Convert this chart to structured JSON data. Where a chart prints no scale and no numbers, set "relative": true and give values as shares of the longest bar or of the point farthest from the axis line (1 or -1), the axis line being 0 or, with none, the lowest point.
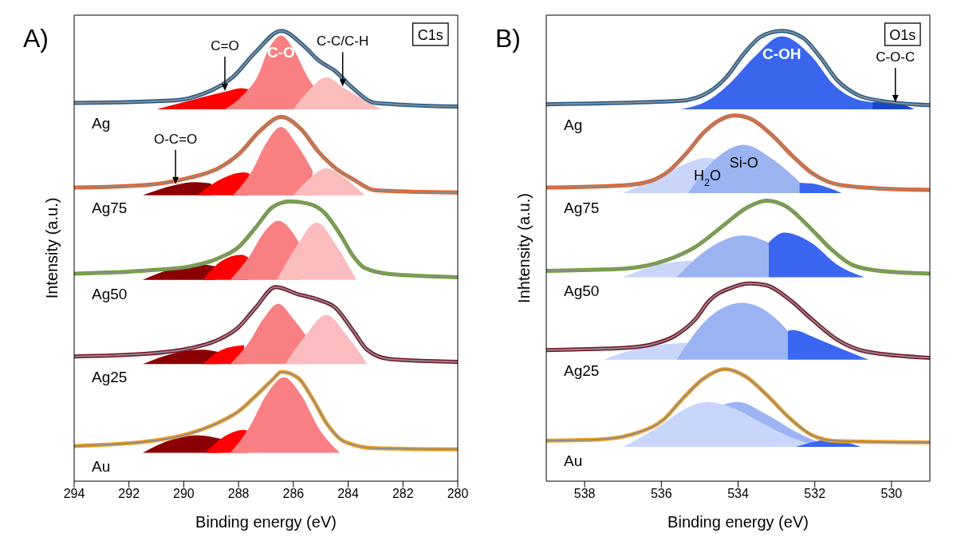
{
  "chart_data": [
    {
      "type": "line",
      "title": "A)",
      "xlabel": "Binding energy (eV)",
      "ylabel": "Intensity (a.u.)",
      "relative": true,
      "xlim": [
        294,
        280
      ],
      "xticks": [
        294,
        292,
        290,
        288,
        286,
        284,
        282,
        280
      ],
      "annotations": [
        "C1s",
        {
          "text": "C=O",
          "x": 288.5,
          "y": 0.865
        },
        {
          "text": "C-O",
          "x": 286.45,
          "y": 0.99
        },
        {
          "text": "C-C/C-H",
          "x": 284.2,
          "y": 0.875
        },
        {
          "text": "O-C=O",
          "x": 290.3,
          "y": 0.658
        }
      ],
      "series": [
        {
          "type": "area",
          "color": "#ff0000",
          "x": [
            291.0,
            289.5,
            288.5,
            287.9,
            287.65
          ],
          "values": [
            0.826,
            0.85,
            0.865,
            0.873,
            0.87
          ]
        },
        {
          "type": "area",
          "color": "#f88080",
          "x": [
            288.5,
            287.8,
            287.3,
            286.9,
            286.45,
            286.0,
            285.5,
            285.25
          ],
          "values": [
            0.826,
            0.86,
            0.9,
            0.96,
            0.99,
            0.96,
            0.9,
            0.876
          ]
        },
        {
          "type": "area",
          "color": "#fbbcbc",
          "x": [
            286.0,
            285.4,
            284.8,
            284.2,
            283.5,
            282.8
          ],
          "values": [
            0.826,
            0.87,
            0.897,
            0.875,
            0.85,
            0.826
          ]
        },
        {
          "name": "Ag",
          "color": "#1f5a8f",
          "x": [
            294.0,
            290.3,
            289.26,
            288.2,
            287.38,
            286.44,
            285.61,
            285.09,
            284.46,
            283.83,
            283.0,
            280.0
          ],
          "values": [
            0.84,
            0.846,
            0.861,
            0.898,
            0.953,
            1.0,
            0.966,
            0.935,
            0.91,
            0.873,
            0.84,
            0.832
          ]
        },
        {
          "color": "#8c8c8c",
          "x": [
            294.0,
            290.3,
            289.26,
            288.2,
            287.38,
            286.44,
            285.61,
            285.09,
            284.46,
            283.83,
            283.0,
            280.0
          ],
          "values": [
            0.84,
            0.846,
            0.861,
            0.898,
            0.953,
            1.0,
            0.966,
            0.935,
            0.91,
            0.873,
            0.84,
            0.832
          ]
        },
        {
          "type": "area",
          "color": "#8b0001",
          "x": [
            291.5,
            290.3,
            289.6,
            289.0
          ],
          "values": [
            0.635,
            0.658,
            0.664,
            0.661
          ]
        },
        {
          "type": "area",
          "color": "#ff0001",
          "x": [
            289.5,
            288.6,
            287.8,
            287.6
          ],
          "values": [
            0.635,
            0.672,
            0.686,
            0.683
          ]
        },
        {
          "type": "area",
          "color": "#f88081",
          "x": [
            288.2,
            287.5,
            287.0,
            286.45,
            285.9,
            285.3
          ],
          "values": [
            0.635,
            0.69,
            0.75,
            0.787,
            0.75,
            0.69
          ]
        },
        {
          "type": "area",
          "color": "#fbbcbd",
          "x": [
            286.0,
            285.4,
            284.8,
            284.1,
            283.4
          ],
          "values": [
            0.635,
            0.672,
            0.695,
            0.672,
            0.635
          ]
        },
        {
          "name": "Ag75",
          "color": "#f05a1e",
          "x": [
            294.0,
            291.34,
            289.78,
            288.74,
            288.0,
            287.17,
            286.44,
            285.71,
            285.09,
            284.46,
            283.83,
            283.0,
            280.0
          ],
          "values": [
            0.652,
            0.658,
            0.674,
            0.695,
            0.726,
            0.781,
            0.809,
            0.781,
            0.732,
            0.695,
            0.671,
            0.646,
            0.641
          ]
        },
        {
          "color": "#8c8c8c",
          "x": [
            294.0,
            291.34,
            289.78,
            288.74,
            288.0,
            287.17,
            286.44,
            285.71,
            285.09,
            284.46,
            283.83,
            283.0,
            280.0
          ],
          "values": [
            0.652,
            0.658,
            0.674,
            0.695,
            0.726,
            0.781,
            0.809,
            0.781,
            0.732,
            0.695,
            0.671,
            0.646,
            0.641
          ]
        },
        {
          "type": "area",
          "color": "#8b0002",
          "x": [
            291.5,
            290.3,
            289.4,
            288.85
          ],
          "values": [
            0.447,
            0.474,
            0.482,
            0.477
          ]
        },
        {
          "type": "area",
          "color": "#ff0002",
          "x": [
            289.3,
            288.6,
            287.9,
            287.65
          ],
          "values": [
            0.447,
            0.49,
            0.503,
            0.497
          ]
        },
        {
          "type": "area",
          "color": "#f88082",
          "x": [
            288.3,
            287.6,
            287.1,
            286.55,
            286.0,
            285.8
          ],
          "values": [
            0.447,
            0.5,
            0.55,
            0.578,
            0.55,
            0.53
          ]
        },
        {
          "type": "area",
          "color": "#fbbcbe",
          "x": [
            286.6,
            285.9,
            285.15,
            284.4,
            283.7
          ],
          "values": [
            0.447,
            0.52,
            0.574,
            0.52,
            0.447
          ]
        },
        {
          "name": "Ag50",
          "color": "#6aa52a",
          "x": [
            294.0,
            291.34,
            289.78,
            288.74,
            288.0,
            287.38,
            286.75,
            286.13,
            285.5,
            284.88,
            284.25,
            283.83,
            283.41,
            282.47,
            280.0
          ],
          "values": [
            0.461,
            0.468,
            0.477,
            0.495,
            0.52,
            0.563,
            0.609,
            0.621,
            0.617,
            0.597,
            0.544,
            0.501,
            0.474,
            0.46,
            0.453
          ]
        },
        {
          "color": "#8c8c8c",
          "x": [
            294.0,
            291.34,
            289.78,
            288.74,
            288.0,
            287.38,
            286.75,
            286.13,
            285.5,
            284.88,
            284.25,
            283.83,
            283.41,
            282.47,
            280.0
          ],
          "values": [
            0.461,
            0.468,
            0.477,
            0.495,
            0.52,
            0.563,
            0.609,
            0.621,
            0.617,
            0.597,
            0.544,
            0.501,
            0.474,
            0.46,
            0.453
          ]
        },
        {
          "type": "area",
          "color": "#8b0003",
          "x": [
            291.5,
            290.3,
            289.3,
            288.75
          ],
          "values": [
            0.26,
            0.285,
            0.292,
            0.287
          ]
        },
        {
          "type": "area",
          "color": "#ff0003",
          "x": [
            289.3,
            288.6,
            287.8
          ],
          "values": [
            0.26,
            0.292,
            0.302
          ]
        },
        {
          "type": "area",
          "color": "#f88083",
          "x": [
            288.3,
            287.6,
            287.1,
            286.55,
            286.0,
            285.55
          ],
          "values": [
            0.26,
            0.31,
            0.36,
            0.394,
            0.36,
            0.324
          ]
        },
        {
          "type": "area",
          "color": "#fbbcbf",
          "x": [
            286.3,
            285.6,
            284.8,
            284.0,
            283.3
          ],
          "values": [
            0.26,
            0.32,
            0.369,
            0.32,
            0.26
          ]
        },
        {
          "name": "Ag25",
          "color": "#7a1028",
          "x": [
            294.0,
            291.34,
            289.78,
            288.74,
            288.0,
            287.38,
            286.65,
            285.82,
            285.09,
            284.46,
            283.83,
            283.31,
            282.47,
            280.0
          ],
          "values": [
            0.277,
            0.283,
            0.295,
            0.314,
            0.342,
            0.385,
            0.431,
            0.415,
            0.403,
            0.385,
            0.335,
            0.292,
            0.271,
            0.265
          ]
        },
        {
          "color": "#8c8c8c",
          "x": [
            294.0,
            291.34,
            289.78,
            288.74,
            288.0,
            287.38,
            286.65,
            285.82,
            285.09,
            284.46,
            283.83,
            283.31,
            282.47,
            280.0
          ],
          "values": [
            0.277,
            0.283,
            0.295,
            0.314,
            0.342,
            0.385,
            0.431,
            0.415,
            0.403,
            0.385,
            0.335,
            0.292,
            0.271,
            0.265
          ]
        },
        {
          "type": "area",
          "color": "#8b0004",
          "x": [
            291.5,
            290.4,
            289.5,
            288.65
          ],
          "values": [
            0.063,
            0.093,
            0.102,
            0.094
          ]
        },
        {
          "type": "area",
          "color": "#ff0004",
          "x": [
            289.2,
            288.5,
            287.8,
            287.7
          ],
          "values": [
            0.063,
            0.1,
            0.114,
            0.113
          ]
        },
        {
          "type": "area",
          "color": "#f88084",
          "x": [
            288.3,
            287.6,
            287.0,
            286.35,
            285.7,
            285.1,
            284.3
          ],
          "values": [
            0.063,
            0.12,
            0.19,
            0.231,
            0.19,
            0.12,
            0.063
          ]
        },
        {
          "name": "Au",
          "color": "#f5a01e",
          "x": [
            294.0,
            291.34,
            289.78,
            288.74,
            288.0,
            287.38,
            286.75,
            286.44,
            285.82,
            285.3,
            284.77,
            284.14,
            283.0,
            280.0
          ],
          "values": [
            0.078,
            0.088,
            0.106,
            0.13,
            0.155,
            0.189,
            0.226,
            0.243,
            0.229,
            0.183,
            0.127,
            0.088,
            0.073,
            0.071
          ]
        },
        {
          "color": "#8c8c8c",
          "x": [
            294.0,
            291.34,
            289.78,
            288.74,
            288.0,
            287.38,
            286.75,
            286.44,
            285.82,
            285.3,
            284.77,
            284.14,
            283.0,
            280.0
          ],
          "values": [
            0.078,
            0.088,
            0.106,
            0.13,
            0.155,
            0.189,
            0.226,
            0.243,
            0.229,
            0.183,
            0.127,
            0.088,
            0.073,
            0.071
          ]
        }
      ]
    },
    {
      "type": "line",
      "title": "B)",
      "xlabel": "Binding energy (eV)",
      "ylabel": "Inhtensity (a.u.)",
      "relative": true,
      "xlim": [
        539,
        529
      ],
      "xticks": [
        538,
        536,
        534,
        532,
        530
      ],
      "annotations": [
        "O1s",
        {
          "text": "C-OH",
          "x": 532.86,
          "y": 0.988
        },
        {
          "text": "C-O-C",
          "x": 529.9,
          "y": 0.84
        },
        {
          "text": "Si-O",
          "x": 533.85,
          "y": 0.747
        },
        {
          "text": "H$_{2}$O",
          "x": 534.8,
          "y": 0.718
        }
      ],
      "series": [
        {
          "type": "area",
          "color": "#3a66ee",
          "x": [
            535.5,
            534.7,
            534.2,
            533.6,
            532.86,
            532.1,
            531.5,
            530.9,
            530.5
          ],
          "values": [
            0.826,
            0.85,
            0.885,
            0.94,
            0.988,
            0.945,
            0.88,
            0.848,
            0.842
          ]
        },
        {
          "type": "area",
          "color": "#1a45c8",
          "x": [
            530.5,
            529.9,
            529.4
          ],
          "values": [
            0.842,
            0.84,
            0.826
          ]
        },
        {
          "name": "Ag",
          "color": "#1f5a8f",
          "x": [
            539.0,
            535.49,
            534.75,
            534.31,
            533.86,
            533.41,
            532.86,
            532.3,
            531.86,
            531.41,
            530.89,
            530.3,
            529.0
          ],
          "values": [
            0.837,
            0.845,
            0.865,
            0.897,
            0.948,
            0.987,
            1.0,
            0.984,
            0.942,
            0.89,
            0.858,
            0.845,
            0.835
          ]
        },
        {
          "color": "#8c8c8c",
          "x": [
            539.0,
            535.49,
            534.75,
            534.31,
            533.86,
            533.41,
            532.86,
            532.3,
            531.86,
            531.41,
            530.89,
            530.3,
            529.0
          ],
          "values": [
            0.837,
            0.845,
            0.865,
            0.897,
            0.948,
            0.987,
            1.0,
            0.984,
            0.942,
            0.89,
            0.858,
            0.845,
            0.835
          ]
        },
        {
          "type": "area",
          "color": "#c9d6f9",
          "x": [
            537.0,
            536.2,
            535.5,
            534.8,
            534.6
          ],
          "values": [
            0.64,
            0.67,
            0.7,
            0.718,
            0.715
          ]
        },
        {
          "type": "area",
          "color": "#9cb3f1",
          "x": [
            535.3,
            534.6,
            533.85,
            533.1,
            532.4
          ],
          "values": [
            0.64,
            0.715,
            0.747,
            0.715,
            0.665
          ]
        },
        {
          "type": "area",
          "color": "#3a66ef",
          "x": [
            532.4,
            532.0,
            531.3
          ],
          "values": [
            0.663,
            0.66,
            0.64
          ]
        },
        {
          "name": "Ag75",
          "color": "#f05a1e",
          "x": [
            539.0,
            536.98,
            536.24,
            535.79,
            535.34,
            534.9,
            534.46,
            534.08,
            533.63,
            533.11,
            532.59,
            532.07,
            531.41,
            530.3,
            529.0
          ],
          "values": [
            0.652,
            0.657,
            0.668,
            0.69,
            0.729,
            0.774,
            0.803,
            0.812,
            0.803,
            0.768,
            0.723,
            0.684,
            0.659,
            0.65,
            0.647
          ]
        },
        {
          "color": "#8c8c8c",
          "x": [
            539.0,
            536.98,
            536.24,
            535.79,
            535.34,
            534.9,
            534.46,
            534.08,
            533.63,
            533.11,
            532.59,
            532.07,
            531.41,
            530.3,
            529.0
          ],
          "values": [
            0.652,
            0.657,
            0.668,
            0.69,
            0.729,
            0.774,
            0.803,
            0.812,
            0.803,
            0.768,
            0.723,
            0.684,
            0.659,
            0.65,
            0.647
          ]
        },
        {
          "type": "area",
          "color": "#c9d6fa",
          "x": [
            537.0,
            536.0,
            535.2
          ],
          "values": [
            0.453,
            0.482,
            0.49
          ]
        },
        {
          "type": "area",
          "color": "#9cb3f2",
          "x": [
            535.6,
            534.8,
            533.85,
            533.2
          ],
          "values": [
            0.453,
            0.515,
            0.546,
            0.53
          ]
        },
        {
          "type": "area",
          "color": "#3a66f0",
          "x": [
            533.2,
            532.8,
            532.1,
            531.4,
            530.7
          ],
          "values": [
            0.53,
            0.552,
            0.53,
            0.48,
            0.453
          ]
        },
        {
          "name": "Ag50",
          "color": "#6aa52a",
          "x": [
            539.0,
            536.98,
            535.86,
            535.12,
            534.38,
            533.78,
            533.26,
            532.74,
            532.15,
            531.56,
            531.04,
            530.3,
            529.0
          ],
          "values": [
            0.467,
            0.472,
            0.491,
            0.52,
            0.568,
            0.607,
            0.623,
            0.61,
            0.565,
            0.514,
            0.481,
            0.467,
            0.461
          ]
        },
        {
          "color": "#8c8c8c",
          "x": [
            539.0,
            536.98,
            535.86,
            535.12,
            534.38,
            533.78,
            533.26,
            532.74,
            532.15,
            531.56,
            531.04,
            530.3,
            529.0
          ],
          "values": [
            0.467,
            0.472,
            0.491,
            0.52,
            0.568,
            0.607,
            0.623,
            0.61,
            0.565,
            0.514,
            0.481,
            0.467,
            0.461
          ]
        },
        {
          "type": "area",
          "color": "#c9d6fb",
          "x": [
            537.5,
            536.2,
            535.3
          ],
          "values": [
            0.27,
            0.302,
            0.307
          ]
        },
        {
          "type": "area",
          "color": "#9cb3f3",
          "x": [
            535.6,
            534.8,
            533.9,
            533.0,
            532.7
          ],
          "values": [
            0.27,
            0.36,
            0.396,
            0.36,
            0.333
          ]
        },
        {
          "type": "area",
          "color": "#3a66f1",
          "x": [
            532.7,
            532.6,
            531.9,
            531.2,
            530.6
          ],
          "values": [
            0.333,
            0.336,
            0.315,
            0.29,
            0.27
          ]
        },
        {
          "name": "Ag25",
          "color": "#7a1028",
          "x": [
            539.0,
            536.98,
            536.24,
            535.64,
            535.12,
            534.75,
            534.16,
            533.7,
            533.26,
            532.67,
            532.07,
            531.41,
            530.67,
            529.0
          ],
          "values": [
            0.291,
            0.296,
            0.304,
            0.323,
            0.359,
            0.401,
            0.43,
            0.439,
            0.435,
            0.404,
            0.359,
            0.314,
            0.288,
            0.274
          ]
        },
        {
          "color": "#8c8c8c",
          "x": [
            539.0,
            536.98,
            536.24,
            535.64,
            535.12,
            534.75,
            534.16,
            533.7,
            533.26,
            532.67,
            532.07,
            531.41,
            530.67,
            529.0
          ],
          "values": [
            0.291,
            0.296,
            0.304,
            0.323,
            0.359,
            0.401,
            0.43,
            0.439,
            0.435,
            0.404,
            0.359,
            0.314,
            0.288,
            0.274
          ]
        },
        {
          "type": "area",
          "color": "#9cb3f4",
          "x": [
            534.4,
            534.0,
            533.3,
            532.5,
            531.6
          ],
          "values": [
            0.17,
            0.176,
            0.15,
            0.11,
            0.076
          ]
        },
        {
          "type": "area",
          "color": "#c9d6fc",
          "x": [
            537.0,
            536.0,
            535.4,
            534.8,
            534.2,
            533.5,
            532.7,
            531.8
          ],
          "values": [
            0.076,
            0.125,
            0.16,
            0.176,
            0.165,
            0.135,
            0.1,
            0.076
          ]
        },
        {
          "type": "area",
          "color": "#3a66f2",
          "x": [
            532.5,
            531.6,
            530.8
          ],
          "values": [
            0.076,
            0.092,
            0.076
          ]
        },
        {
          "name": "Au",
          "color": "#f5a01e",
          "x": [
            539.0,
            537.72,
            536.61,
            535.94,
            535.49,
            534.9,
            534.34,
            533.78,
            533.26,
            532.67,
            532.07,
            531.41,
            529.0
          ],
          "values": [
            0.09,
            0.092,
            0.108,
            0.137,
            0.179,
            0.228,
            0.249,
            0.231,
            0.192,
            0.141,
            0.102,
            0.089,
            0.086
          ]
        },
        {
          "color": "#8c8c8c",
          "x": [
            539.0,
            537.72,
            536.61,
            535.94,
            535.49,
            534.9,
            534.34,
            533.78,
            533.26,
            532.67,
            532.07,
            531.41,
            529.0
          ],
          "values": [
            0.09,
            0.092,
            0.108,
            0.137,
            0.179,
            0.228,
            0.249,
            0.231,
            0.192,
            0.141,
            0.102,
            0.089,
            0.086
          ]
        }
      ]
    }
  ]
}
